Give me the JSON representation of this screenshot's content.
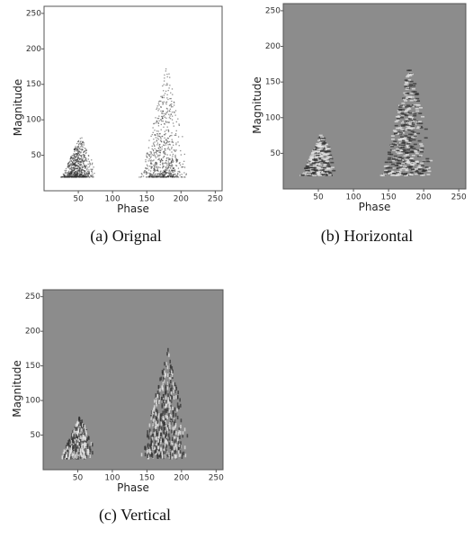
{
  "panels": [
    {
      "caption": "(a) Orignal",
      "xlabel": "Phase",
      "ylabel": "Magnitude",
      "xlim": [
        0,
        260
      ],
      "ylim": [
        0,
        260
      ],
      "xticks": [
        50,
        100,
        150,
        200,
        250
      ],
      "yticks": [
        50,
        100,
        150,
        200,
        250
      ]
    },
    {
      "caption": "(b) Horizontal",
      "xlabel": "Phase",
      "ylabel": "Magnitude",
      "xlim": [
        0,
        260
      ],
      "ylim": [
        0,
        260
      ],
      "xticks": [
        50,
        100,
        150,
        200,
        250
      ],
      "yticks": [
        50,
        100,
        150,
        200,
        250
      ]
    },
    {
      "caption": "(c) Vertical",
      "xlabel": "Phase",
      "ylabel": "Magnitude",
      "xlim": [
        0,
        260
      ],
      "ylim": [
        0,
        260
      ],
      "xticks": [
        50,
        100,
        150,
        200,
        250
      ],
      "yticks": [
        50,
        100,
        150,
        200,
        250
      ]
    }
  ]
}
